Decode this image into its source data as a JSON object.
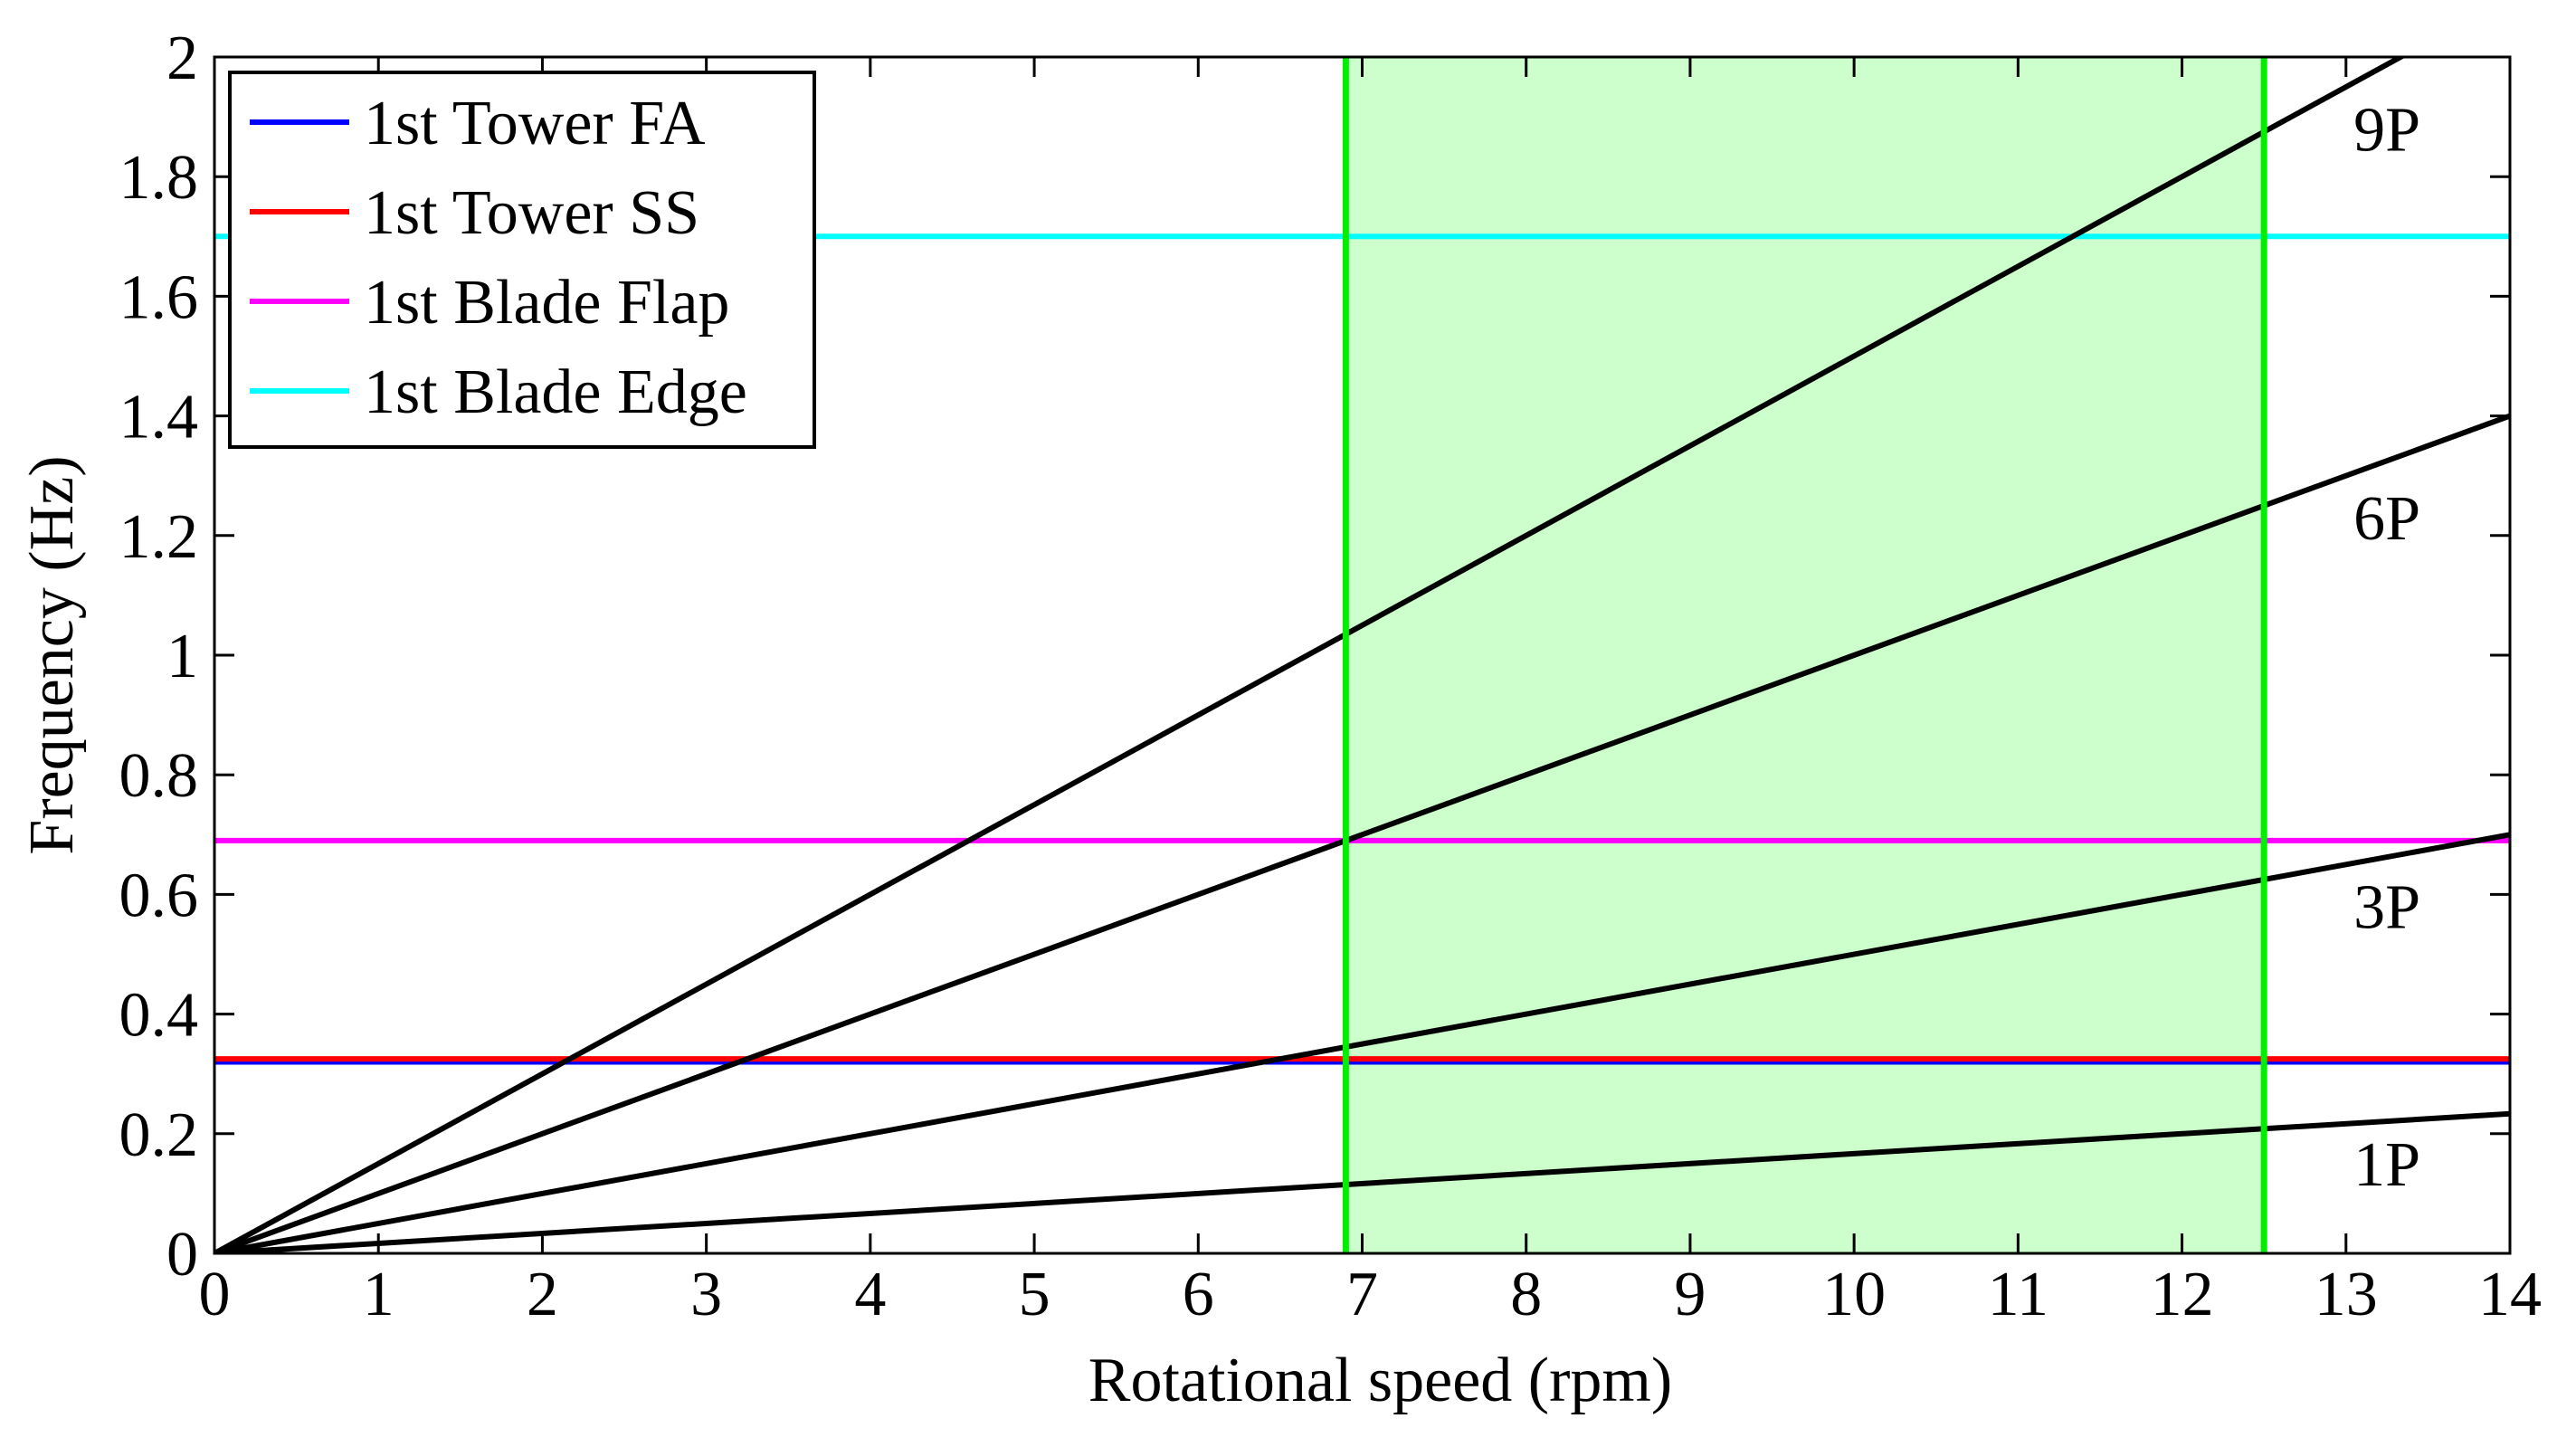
{
  "chart_data": {
    "type": "line",
    "title": "",
    "xlabel": "Rotational speed (rpm)",
    "ylabel": "Frequency (Hz)",
    "xlim": [
      0,
      14
    ],
    "ylim": [
      0,
      2
    ],
    "x_ticks": [
      0,
      1,
      2,
      3,
      4,
      5,
      6,
      7,
      8,
      9,
      10,
      11,
      12,
      13,
      14
    ],
    "y_ticks": [
      0,
      0.2,
      0.4,
      0.6,
      0.8,
      1,
      1.2,
      1.4,
      1.6,
      1.8,
      2
    ],
    "x_tick_labels": [
      "0",
      "1",
      "2",
      "3",
      "4",
      "5",
      "6",
      "7",
      "8",
      "9",
      "10",
      "11",
      "12",
      "13",
      "14"
    ],
    "y_tick_labels": [
      "0",
      "0.2",
      "0.4",
      "0.6",
      "0.8",
      "1",
      "1.2",
      "1.4",
      "1.6",
      "1.8",
      "2"
    ],
    "operating_range": {
      "rpm_min": 6.9,
      "rpm_max": 12.5,
      "fill_color": "#ccffcc",
      "edge_color": "#00ee00"
    },
    "horizontal_series": [
      {
        "name": "1st Tower FA",
        "value": 0.32,
        "color": "#0000ff"
      },
      {
        "name": "1st Tower SS",
        "value": 0.325,
        "color": "#ff0000"
      },
      {
        "name": "1st Blade Flap",
        "value": 0.69,
        "color": "#ff00ff"
      },
      {
        "name": "1st Blade Edge",
        "value": 1.7,
        "color": "#00ffff"
      }
    ],
    "harmonic_series": [
      {
        "name": "1P",
        "multiple": 1,
        "color": "#000000",
        "label_x": 13.25,
        "label_y": 0.15
      },
      {
        "name": "3P",
        "multiple": 3,
        "color": "#000000",
        "label_x": 13.25,
        "label_y": 0.58
      },
      {
        "name": "6P",
        "multiple": 6,
        "color": "#000000",
        "label_x": 13.25,
        "label_y": 1.23
      },
      {
        "name": "9P",
        "multiple": 9,
        "color": "#000000",
        "label_x": 13.25,
        "label_y": 1.88
      }
    ],
    "legend": {
      "position": "top-left",
      "entries": [
        "1st Tower FA",
        "1st Tower SS",
        "1st Blade Flap",
        "1st Blade Edge"
      ]
    }
  }
}
